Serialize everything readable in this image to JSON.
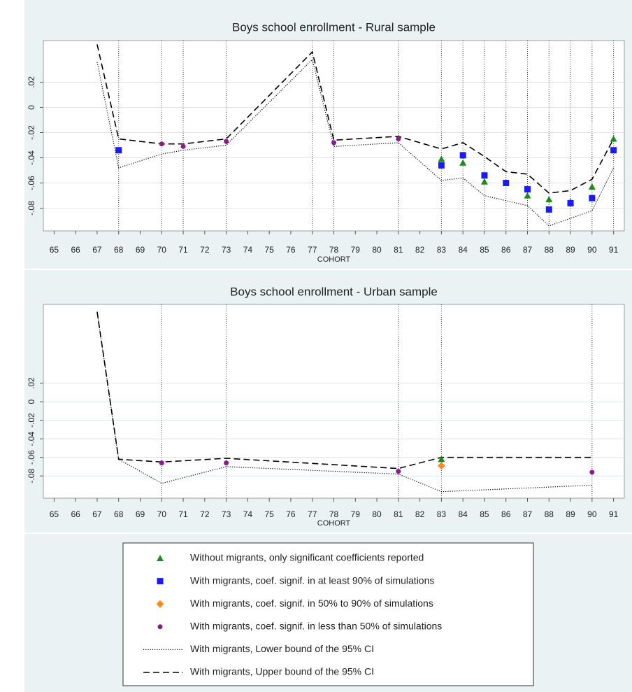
{
  "chart_data": [
    {
      "type": "line",
      "title": "Boys school enrollment - Rural sample",
      "xlabel": "COHORT",
      "xlim": [
        64.5,
        91.5
      ],
      "xticks": [
        65,
        66,
        67,
        68,
        69,
        70,
        71,
        72,
        73,
        74,
        75,
        76,
        77,
        78,
        79,
        80,
        81,
        82,
        83,
        84,
        85,
        86,
        87,
        88,
        89,
        90,
        91
      ],
      "ylim": [
        -0.098,
        0.053
      ],
      "yticks": [
        {
          "value": 0.02,
          "label": ".02"
        },
        0,
        {
          "value": -0.02,
          "label": "-.02"
        },
        {
          "value": -0.04,
          "label": "-.04"
        },
        {
          "value": -0.06,
          "label": "-.06"
        },
        {
          "value": -0.08,
          "label": "-.08"
        }
      ],
      "grid": true,
      "vlines": [
        68,
        70,
        71,
        73,
        77,
        78,
        81,
        83,
        84,
        85,
        86,
        87,
        88,
        89,
        90,
        91
      ],
      "series": [
        {
          "name": "Without migrants, only significant coefficients reported",
          "color": "#1a8a1a",
          "marker": "triangle",
          "x": [
            83,
            84,
            85,
            87,
            88,
            89,
            90,
            91
          ],
          "values": [
            -0.041,
            -0.044,
            -0.059,
            -0.07,
            -0.073,
            -0.075,
            -0.063,
            -0.025
          ]
        },
        {
          "name": "With migrants, coef. signif. in at least 90% of simulations",
          "color": "#1a1aff",
          "marker": "square",
          "x": [
            68,
            83,
            84,
            85,
            86,
            87,
            88,
            89,
            90,
            91
          ],
          "values": [
            -0.034,
            -0.046,
            -0.038,
            -0.054,
            -0.06,
            -0.065,
            -0.081,
            -0.076,
            -0.072,
            -0.034
          ]
        },
        {
          "name": "With migrants, coef. signif. in 50% to 90% of simulations",
          "color": "#ff8c1a",
          "marker": "diamond",
          "x": [],
          "values": []
        },
        {
          "name": "With migrants, coef. signif. in less than 50% of simulations",
          "color": "#8b1a8b",
          "marker": "circle",
          "x": [
            70,
            71,
            73,
            78,
            81
          ],
          "values": [
            -0.029,
            -0.031,
            -0.027,
            -0.028,
            -0.025
          ]
        },
        {
          "name": "With migrants, Lower bound of the 95% CI",
          "color": "#000000",
          "line": "dotted",
          "x": [
            67,
            68,
            70,
            71,
            73,
            77,
            78,
            81,
            83,
            84,
            85,
            86,
            87,
            88,
            89,
            90,
            91
          ],
          "values": [
            0.036,
            -0.048,
            -0.037,
            -0.034,
            -0.03,
            0.038,
            -0.031,
            -0.028,
            -0.058,
            -0.056,
            -0.07,
            -0.074,
            -0.078,
            -0.094,
            -0.088,
            -0.082,
            -0.048
          ]
        },
        {
          "name": "With migrants, Upper bound of the 95% CI",
          "color": "#000000",
          "line": "dashed",
          "x": [
            67,
            68,
            70,
            71,
            73,
            77,
            78,
            81,
            83,
            84,
            85,
            86,
            87,
            88,
            89,
            90,
            91
          ],
          "values": [
            0.05,
            -0.025,
            -0.029,
            -0.029,
            -0.025,
            0.044,
            -0.026,
            -0.023,
            -0.033,
            -0.028,
            -0.039,
            -0.051,
            -0.053,
            -0.068,
            -0.066,
            -0.057,
            -0.025
          ]
        }
      ]
    },
    {
      "type": "line",
      "title": "Boys school enrollment - Urban sample",
      "xlabel": "COHORT",
      "xlim": [
        64.5,
        91.5
      ],
      "xticks": [
        65,
        66,
        67,
        68,
        69,
        70,
        71,
        72,
        73,
        74,
        75,
        76,
        77,
        78,
        79,
        80,
        81,
        82,
        83,
        84,
        85,
        86,
        87,
        88,
        89,
        90,
        91
      ],
      "ylim": [
        -0.104,
        0.105
      ],
      "yticks": [
        {
          "value": 0.02,
          "label": ".02"
        },
        0,
        {
          "value": -0.02,
          "label": "-.02"
        },
        {
          "value": -0.04,
          "label": "-.04"
        },
        {
          "value": -0.06,
          "label": "-.06"
        },
        {
          "value": -0.08,
          "label": "-.08"
        }
      ],
      "grid": true,
      "vlines": [
        70,
        73,
        81,
        83,
        90
      ],
      "series": [
        {
          "color": "#1a8a1a",
          "marker": "triangle",
          "x": [
            83
          ],
          "values": [
            -0.062
          ]
        },
        {
          "color": "#1a1aff",
          "marker": "square",
          "x": [],
          "values": []
        },
        {
          "color": "#ff8c1a",
          "marker": "diamond",
          "x": [
            83
          ],
          "values": [
            -0.069
          ]
        },
        {
          "color": "#8b1a8b",
          "marker": "circle",
          "x": [
            70,
            73,
            81,
            90
          ],
          "values": [
            -0.066,
            -0.066,
            -0.075,
            -0.076
          ]
        },
        {
          "color": "#000000",
          "line": "dotted",
          "x": [
            67,
            68,
            70,
            73,
            81,
            83,
            90
          ],
          "values": [
            0.097,
            -0.062,
            -0.088,
            -0.07,
            -0.078,
            -0.097,
            -0.09
          ]
        },
        {
          "color": "#000000",
          "line": "dashed",
          "x": [
            67,
            68,
            70,
            73,
            81,
            83,
            90
          ],
          "values": [
            0.097,
            -0.062,
            -0.065,
            -0.061,
            -0.072,
            -0.06,
            -0.06
          ]
        }
      ]
    }
  ]
}
